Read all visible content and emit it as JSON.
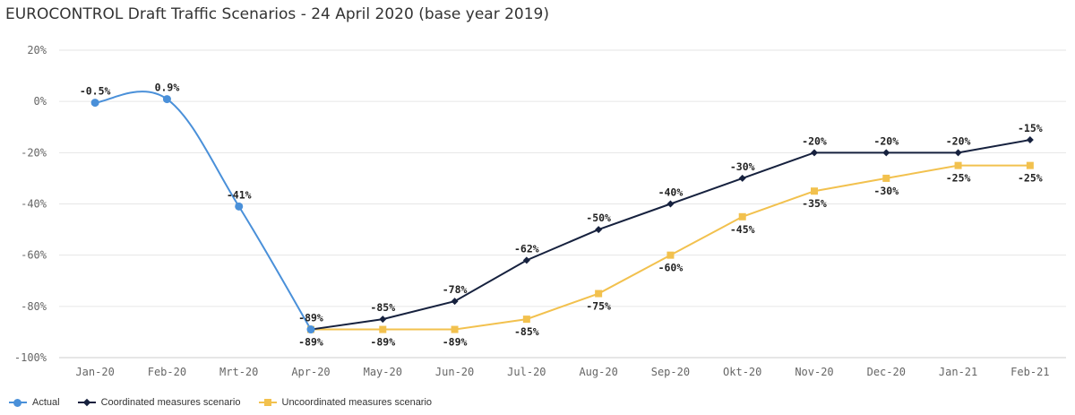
{
  "colors": {
    "actual": "#4a90d9",
    "coordinated": "#16213e",
    "uncoordinated": "#f2c14e",
    "grid": "#e6e6e6"
  },
  "chart_data": {
    "type": "line",
    "title": "EUROCONTROL Draft Traffic Scenarios - 24 April 2020 (base year 2019)",
    "xlabel": "",
    "ylabel": "",
    "categories": [
      "Jan-20",
      "Feb-20",
      "Mrt-20",
      "Apr-20",
      "May-20",
      "Jun-20",
      "Jul-20",
      "Aug-20",
      "Sep-20",
      "Okt-20",
      "Nov-20",
      "Dec-20",
      "Jan-21",
      "Feb-21"
    ],
    "ylim": [
      -100,
      20
    ],
    "yticks": [
      "20%",
      "0%",
      "-20%",
      "-40%",
      "-60%",
      "-80%",
      "-100%"
    ],
    "grid": true,
    "legend_position": "bottom-left",
    "series": [
      {
        "name": "Actual",
        "color_key": "actual",
        "marker": "circle",
        "smooth": true,
        "values": [
          -0.5,
          0.9,
          -41,
          -89,
          null,
          null,
          null,
          null,
          null,
          null,
          null,
          null,
          null,
          null
        ],
        "labels": [
          "-0.5%",
          "0.9%",
          "-41%",
          null,
          null,
          null,
          null,
          null,
          null,
          null,
          null,
          null,
          null,
          null
        ]
      },
      {
        "name": "Coordinated measures scenario",
        "color_key": "coordinated",
        "marker": "diamond",
        "values": [
          null,
          null,
          null,
          -89,
          -85,
          -78,
          -62,
          -50,
          -40,
          -30,
          -20,
          -20,
          -20,
          -15
        ],
        "labels": [
          null,
          null,
          null,
          "-89%",
          "-85%",
          "-78%",
          "-62%",
          "-50%",
          "-40%",
          "-30%",
          "-20%",
          "-20%",
          "-20%",
          "-15%"
        ]
      },
      {
        "name": "Uncoordinated measures scenario",
        "color_key": "uncoordinated",
        "marker": "square",
        "values": [
          null,
          null,
          null,
          -89,
          -89,
          -89,
          -85,
          -75,
          -60,
          -45,
          -35,
          -30,
          -25,
          -25
        ],
        "labels": [
          null,
          null,
          null,
          "-89%",
          "-89%",
          "-89%",
          "-85%",
          "-75%",
          "-60%",
          "-45%",
          "-35%",
          "-30%",
          "-25%",
          "-25%"
        ]
      }
    ]
  }
}
